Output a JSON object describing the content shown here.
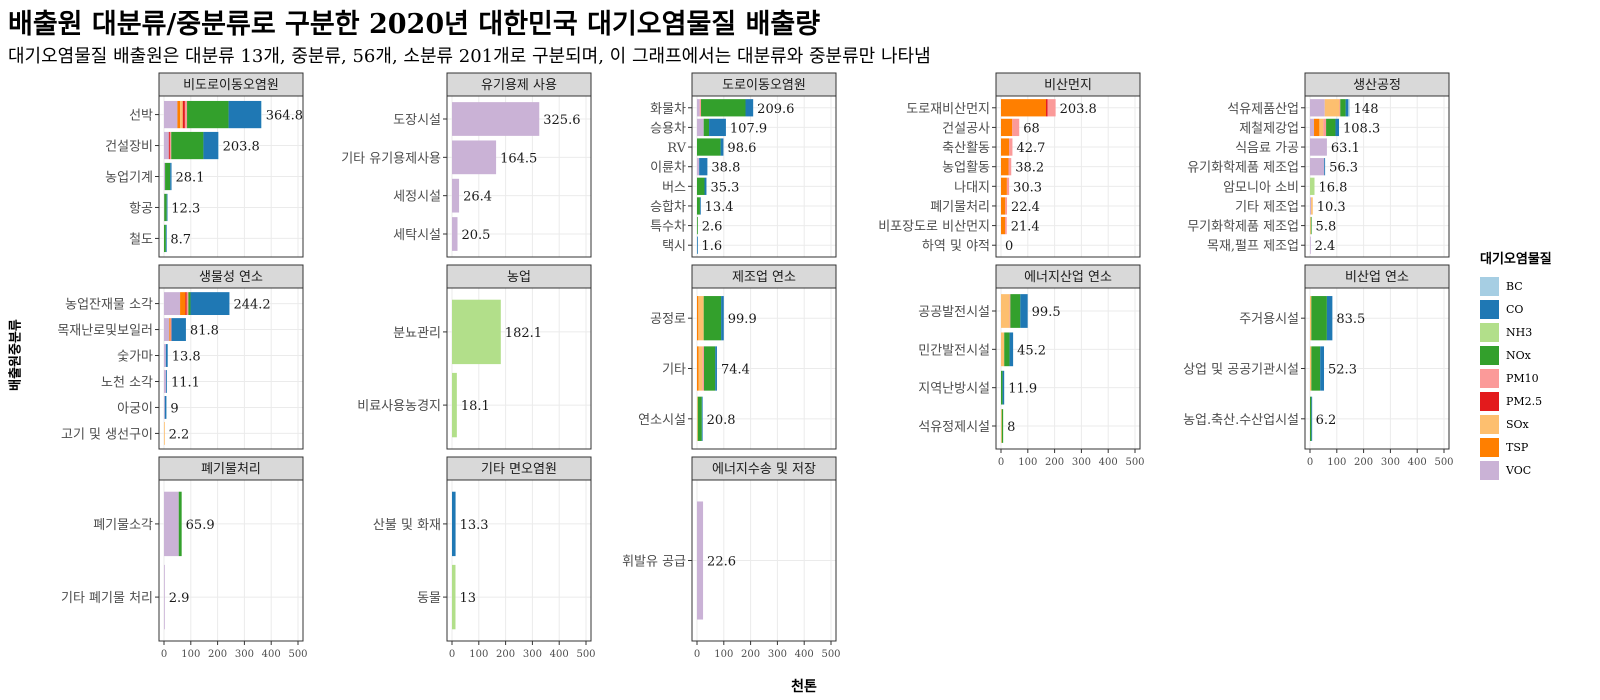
{
  "title": "배출원 대분류/중분류로 구분한 2020년 대한민국 대기오염물질 배출량",
  "subtitle": "대기오염물질 배출원은 대분류 13개, 중분류, 56개, 소분류 201개로 구분되며, 이 그래프에서는 대분류와 중분류만 나타냄",
  "xlabel": "천톤",
  "ylabel": "배출원중분류",
  "legend": {
    "title": "대기오염물질",
    "items": [
      {
        "name": "BC",
        "color": "#A6CEE3"
      },
      {
        "name": "CO",
        "color": "#1F78B4"
      },
      {
        "name": "NH3",
        "color": "#B2DF8A"
      },
      {
        "name": "NOx",
        "color": "#33A02C"
      },
      {
        "name": "PM10",
        "color": "#FB9A99"
      },
      {
        "name": "PM2.5",
        "color": "#E31A1C"
      },
      {
        "name": "SOx",
        "color": "#FDBF6F"
      },
      {
        "name": "TSP",
        "color": "#FF7F00"
      },
      {
        "name": "VOC",
        "color": "#CAB2D6"
      }
    ]
  },
  "chart_data": {
    "type": "bar",
    "orientation": "horizontal",
    "stacked": true,
    "xlim": [
      0,
      500
    ],
    "xticks": [
      0,
      100,
      200,
      300,
      400,
      500
    ],
    "grid": true,
    "legend_position": "right",
    "panels": [
      {
        "title": "비도로이동오염원",
        "categories": [
          {
            "label": "선박",
            "total": 364.8,
            "segments": {
              "VOC": 50,
              "PM10": 8,
              "TSP": 10,
              "SOx": 10,
              "PM2.5": 8,
              "NOx": 155,
              "CO": 121,
              "BC": 2.8
            }
          },
          {
            "label": "건설장비",
            "total": 203.8,
            "segments": {
              "VOC": 18,
              "PM10": 5,
              "PM2.5": 4,
              "NOx": 120,
              "CO": 55,
              "BC": 1.8
            }
          },
          {
            "label": "농업기계",
            "total": 28.1,
            "segments": {
              "VOC": 4,
              "NOx": 19,
              "CO": 5.1
            }
          },
          {
            "label": "항공",
            "total": 12.3,
            "segments": {
              "VOC": 1,
              "NOx": 9,
              "CO": 2.3
            }
          },
          {
            "label": "철도",
            "total": 8.7,
            "segments": {
              "NOx": 7,
              "CO": 1.7
            }
          }
        ]
      },
      {
        "title": "유기용제 사용",
        "categories": [
          {
            "label": "도장시설",
            "total": 325.6,
            "segments": {
              "VOC": 325.6
            }
          },
          {
            "label": "기타 유기용제사용",
            "total": 164.5,
            "segments": {
              "VOC": 164.5
            }
          },
          {
            "label": "세정시설",
            "total": 26.4,
            "segments": {
              "VOC": 26.4
            }
          },
          {
            "label": "세탁시설",
            "total": 20.5,
            "segments": {
              "VOC": 20.5
            }
          }
        ]
      },
      {
        "title": "도로이동오염원",
        "categories": [
          {
            "label": "화물차",
            "total": 209.6,
            "segments": {
              "VOC": 10,
              "PM10": 5,
              "NOx": 166,
              "CO": 28.6
            }
          },
          {
            "label": "승용차",
            "total": 107.9,
            "segments": {
              "VOC": 25,
              "NOx": 20,
              "CO": 62.9
            }
          },
          {
            "label": "RV",
            "total": 98.6,
            "segments": {
              "NOx": 88,
              "CO": 10.6
            }
          },
          {
            "label": "이륜차",
            "total": 38.8,
            "segments": {
              "VOC": 8,
              "CO": 30.8
            }
          },
          {
            "label": "버스",
            "total": 35.3,
            "segments": {
              "NOx": 28,
              "CO": 7.3
            }
          },
          {
            "label": "승합차",
            "total": 13.4,
            "segments": {
              "NOx": 11,
              "CO": 2.4
            }
          },
          {
            "label": "특수차",
            "total": 2.6,
            "segments": {
              "NOx": 2.6
            }
          },
          {
            "label": "택시",
            "total": 1.6,
            "segments": {
              "CO": 1.6
            }
          }
        ]
      },
      {
        "title": "비산먼지",
        "categories": [
          {
            "label": "도로재비산먼지",
            "total": 203.8,
            "segments": {
              "TSP": 168,
              "PM2.5": 6,
              "PM10": 29.8
            }
          },
          {
            "label": "건설공사",
            "total": 68,
            "segments": {
              "TSP": 42,
              "PM10": 26
            }
          },
          {
            "label": "축산활동",
            "total": 42.7,
            "segments": {
              "TSP": 30,
              "PM10": 12.7
            }
          },
          {
            "label": "농업활동",
            "total": 38.2,
            "segments": {
              "TSP": 28,
              "PM10": 10.2
            }
          },
          {
            "label": "나대지",
            "total": 30.3,
            "segments": {
              "TSP": 22,
              "PM10": 8.3
            }
          },
          {
            "label": "폐기물처리",
            "total": 22.4,
            "segments": {
              "TSP": 16,
              "PM10": 6.4
            }
          },
          {
            "label": "비포장도로 비산먼지",
            "total": 21.4,
            "segments": {
              "TSP": 15,
              "PM10": 6.4
            }
          },
          {
            "label": "하역 및 야적",
            "total": 0,
            "segments": {}
          }
        ]
      },
      {
        "title": "생산공정",
        "categories": [
          {
            "label": "석유제품산업",
            "total": 148,
            "segments": {
              "VOC": 55,
              "PM10": 3,
              "SOx": 55,
              "NOx": 20,
              "CO": 10,
              "BC": 5
            }
          },
          {
            "label": "제철제강업",
            "total": 108.3,
            "segments": {
              "VOC": 15,
              "PM10": 10,
              "TSP": 20,
              "SOx": 15,
              "NOx": 35,
              "CO": 13.3
            }
          },
          {
            "label": "식음료 가공",
            "total": 63.1,
            "segments": {
              "VOC": 63.1
            }
          },
          {
            "label": "유기화학제품 제조업",
            "total": 56.3,
            "segments": {
              "VOC": 53,
              "CO": 3.3
            }
          },
          {
            "label": "암모니아 소비",
            "total": 16.8,
            "segments": {
              "NH3": 16.8
            }
          },
          {
            "label": "기타 제조업",
            "total": 10.3,
            "segments": {
              "VOC": 4,
              "SOx": 6.3
            }
          },
          {
            "label": "무기화학제품 제조업",
            "total": 5.8,
            "segments": {
              "SOx": 3,
              "NOx": 2.8
            }
          },
          {
            "label": "목재,펄프 제조업",
            "total": 2.4,
            "segments": {
              "VOC": 2.4
            }
          }
        ]
      },
      {
        "title": "생물성 연소",
        "categories": [
          {
            "label": "농업잔재물 소각",
            "total": 244.2,
            "segments": {
              "VOC": 60,
              "PM10": 6,
              "TSP": 20,
              "PM2.5": 5,
              "NOx": 8,
              "CO": 145.2
            }
          },
          {
            "label": "목재난로및보일러",
            "total": 81.8,
            "segments": {
              "VOC": 20,
              "PM10": 4,
              "TSP": 4,
              "CO": 53.8
            }
          },
          {
            "label": "숯가마",
            "total": 13.8,
            "segments": {
              "VOC": 7,
              "CO": 6.8
            }
          },
          {
            "label": "노천 소각",
            "total": 11.1,
            "segments": {
              "VOC": 8,
              "CO": 3.1
            }
          },
          {
            "label": "아궁이",
            "total": 9,
            "segments": {
              "VOC": 3,
              "CO": 6
            }
          },
          {
            "label": "고기 및 생선구이",
            "total": 2.2,
            "segments": {
              "SOx": 2.2
            }
          }
        ]
      },
      {
        "title": "농업",
        "categories": [
          {
            "label": "분뇨관리",
            "total": 182.1,
            "segments": {
              "NH3": 182.1
            }
          },
          {
            "label": "비료사용농경지",
            "total": 18.1,
            "segments": {
              "NH3": 18.1
            }
          }
        ]
      },
      {
        "title": "제조업 연소",
        "categories": [
          {
            "label": "공정로",
            "total": 99.9,
            "segments": {
              "SOx": 20,
              "TSP": 5,
              "NOx": 65,
              "CO": 9.9
            }
          },
          {
            "label": "기타",
            "total": 74.4,
            "segments": {
              "SOx": 15,
              "TSP": 6,
              "PM10": 5,
              "NOx": 42,
              "CO": 6.4
            }
          },
          {
            "label": "연소시설",
            "total": 20.8,
            "segments": {
              "SOx": 3,
              "NOx": 15,
              "CO": 2.8
            }
          }
        ]
      },
      {
        "title": "에너지산업 연소",
        "categories": [
          {
            "label": "공공발전시설",
            "total": 99.5,
            "segments": {
              "SOx": 32,
              "PM10": 3,
              "NOx": 37,
              "CO": 27.5
            }
          },
          {
            "label": "민간발전시설",
            "total": 45.2,
            "segments": {
              "SOx": 12,
              "NOx": 20,
              "CO": 13.2
            }
          },
          {
            "label": "지역난방시설",
            "total": 11.9,
            "segments": {
              "NOx": 6,
              "CO": 5.9
            }
          },
          {
            "label": "석유정제시설",
            "total": 8,
            "segments": {
              "SOx": 3,
              "NOx": 5
            }
          }
        ]
      },
      {
        "title": "비산업 연소",
        "categories": [
          {
            "label": "주거용시설",
            "total": 83.5,
            "segments": {
              "SOx": 5,
              "NOx": 58,
              "CO": 20.5
            }
          },
          {
            "label": "상업 및 공공기관시설",
            "total": 52.3,
            "segments": {
              "SOx": 5,
              "NOx": 33,
              "CO": 14.3
            }
          },
          {
            "label": "농업.축산.수산업시설",
            "total": 6.2,
            "segments": {
              "NOx": 5,
              "CO": 1.2
            }
          }
        ]
      },
      {
        "title": "폐기물처리",
        "categories": [
          {
            "label": "폐기물소각",
            "total": 65.9,
            "segments": {
              "VOC": 55,
              "NOx": 10.9
            }
          },
          {
            "label": "기타 폐기물 처리",
            "total": 2.9,
            "segments": {
              "VOC": 2.9
            }
          }
        ]
      },
      {
        "title": "기타 면오염원",
        "categories": [
          {
            "label": "산불 및 화재",
            "total": 13.3,
            "segments": {
              "CO": 13.3
            }
          },
          {
            "label": "동물",
            "total": 13,
            "segments": {
              "NH3": 13
            }
          }
        ]
      },
      {
        "title": "에너지수송 및 저장",
        "categories": [
          {
            "label": "휘발유 공급",
            "total": 22.6,
            "segments": {
              "VOC": 22.6
            }
          }
        ]
      }
    ]
  }
}
